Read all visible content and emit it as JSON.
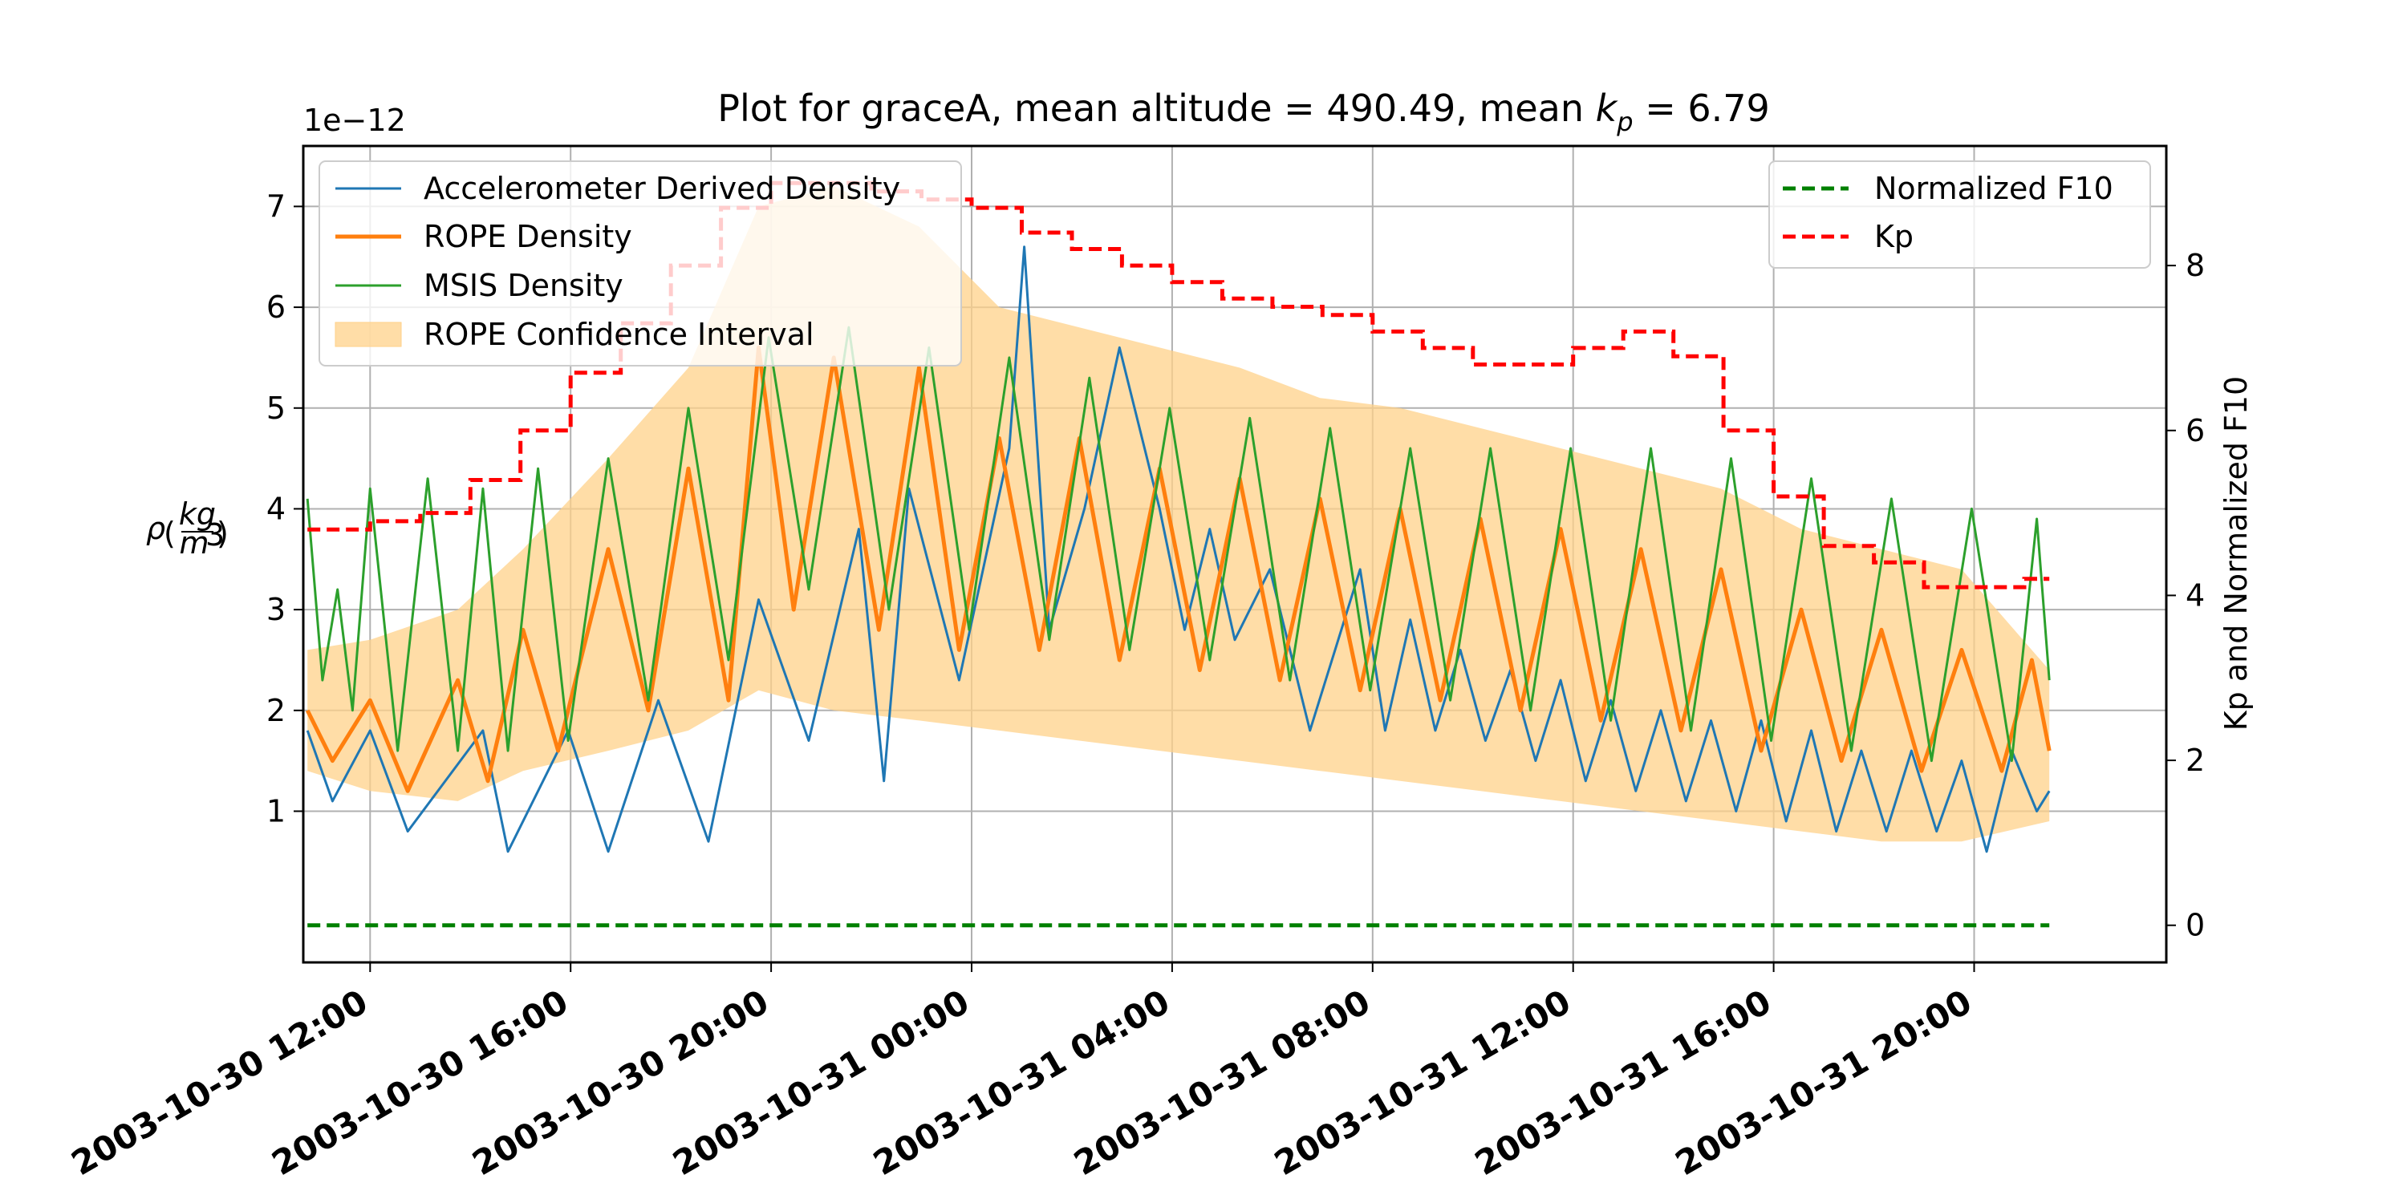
{
  "colors": {
    "accelerometer": "#1f77b4",
    "rope": "#ff7f0e",
    "msis": "#2ca02c",
    "confidence": "#ffd18a",
    "normalized_f10": "#008000",
    "kp": "#ff0000",
    "grid": "#b0b0b0"
  },
  "chart_data": {
    "type": "line",
    "title": "Plot for graceA, mean altitude = 490.49, mean k_p = 6.79",
    "title_parts": {
      "prefix": "Plot for graceA, mean altitude = 490.49, mean ",
      "k": "k",
      "p": "p",
      "suffix": " = 6.79"
    },
    "y_multiplier_label": "1e−12",
    "ylabel_left": {
      "rho": "ρ",
      "num": "kg",
      "den": "m",
      "exp": "3"
    },
    "ylabel_right": "Kp and Normalized F10",
    "x_range": [
      "2003-10-30T10:40",
      "2003-10-31T23:50"
    ],
    "ylim_left": [
      -0.5,
      7.6
    ],
    "ylim_right": [
      -0.45,
      9.45
    ],
    "grid": true,
    "x_ticks": [
      "2003-10-30 12:00",
      "2003-10-30 16:00",
      "2003-10-30 20:00",
      "2003-10-31 00:00",
      "2003-10-31 04:00",
      "2003-10-31 08:00",
      "2003-10-31 12:00",
      "2003-10-31 16:00",
      "2003-10-31 20:00"
    ],
    "y_ticks_left": [
      "1",
      "2",
      "3",
      "4",
      "5",
      "6",
      "7"
    ],
    "y_ticks_right": [
      "0",
      "2",
      "4",
      "6",
      "8"
    ],
    "legend_left": {
      "placement": "upper-left",
      "entries": [
        "Accelerometer Derived Density",
        "ROPE Density",
        "MSIS Density",
        "ROPE Confidence Interval"
      ]
    },
    "legend_right": {
      "placement": "upper-right",
      "entries": [
        "Normalized F10",
        "Kp"
      ]
    },
    "series_time": {
      "start": "2003-10-30T10:45",
      "end": "2003-10-31T21:30"
    },
    "series": [
      {
        "name": "Accelerometer Derived Density",
        "axis": "left",
        "style": "solid",
        "points": [
          [
            0,
            1.8
          ],
          [
            0.5,
            1.1
          ],
          [
            1.25,
            1.8
          ],
          [
            2,
            0.8
          ],
          [
            3.5,
            1.8
          ],
          [
            4,
            0.6
          ],
          [
            5.2,
            1.8
          ],
          [
            6,
            0.6
          ],
          [
            7,
            2.1
          ],
          [
            8,
            0.7
          ],
          [
            9,
            3.1
          ],
          [
            10,
            1.7
          ],
          [
            11,
            3.8
          ],
          [
            11.5,
            1.3
          ],
          [
            12,
            4.2
          ],
          [
            13,
            2.3
          ],
          [
            14,
            4.6
          ],
          [
            14.3,
            6.6
          ],
          [
            14.8,
            2.8
          ],
          [
            15.5,
            4.0
          ],
          [
            16.2,
            5.6
          ],
          [
            17,
            4.0
          ],
          [
            17.5,
            2.8
          ],
          [
            18,
            3.8
          ],
          [
            18.5,
            2.7
          ],
          [
            19.2,
            3.4
          ],
          [
            20,
            1.8
          ],
          [
            20.5,
            2.6
          ],
          [
            21,
            3.4
          ],
          [
            21.5,
            1.8
          ],
          [
            22,
            2.9
          ],
          [
            22.5,
            1.8
          ],
          [
            23,
            2.6
          ],
          [
            23.5,
            1.7
          ],
          [
            24,
            2.4
          ],
          [
            24.5,
            1.5
          ],
          [
            25,
            2.3
          ],
          [
            25.5,
            1.3
          ],
          [
            26,
            2.1
          ],
          [
            26.5,
            1.2
          ],
          [
            27,
            2.0
          ],
          [
            27.5,
            1.1
          ],
          [
            28,
            1.9
          ],
          [
            28.5,
            1.0
          ],
          [
            29,
            1.9
          ],
          [
            29.5,
            0.9
          ],
          [
            30,
            1.8
          ],
          [
            30.5,
            0.8
          ],
          [
            31,
            1.6
          ],
          [
            31.5,
            0.8
          ],
          [
            32,
            1.6
          ],
          [
            32.5,
            0.8
          ],
          [
            33,
            1.5
          ],
          [
            33.5,
            0.6
          ],
          [
            34,
            1.6
          ],
          [
            34.5,
            1.0
          ],
          [
            34.75,
            1.2
          ]
        ]
      },
      {
        "name": "ROPE Density",
        "axis": "left",
        "style": "solid",
        "points": [
          [
            0,
            2.0
          ],
          [
            0.5,
            1.5
          ],
          [
            1.25,
            2.1
          ],
          [
            2,
            1.2
          ],
          [
            3,
            2.3
          ],
          [
            3.6,
            1.3
          ],
          [
            4.3,
            2.8
          ],
          [
            5,
            1.6
          ],
          [
            6,
            3.6
          ],
          [
            6.8,
            2.0
          ],
          [
            7.6,
            4.4
          ],
          [
            8.4,
            2.1
          ],
          [
            9,
            5.6
          ],
          [
            9.7,
            3.0
          ],
          [
            10.5,
            5.5
          ],
          [
            11.4,
            2.8
          ],
          [
            12.2,
            5.4
          ],
          [
            13,
            2.6
          ],
          [
            13.8,
            4.7
          ],
          [
            14.6,
            2.6
          ],
          [
            15.4,
            4.7
          ],
          [
            16.2,
            2.5
          ],
          [
            17,
            4.4
          ],
          [
            17.8,
            2.4
          ],
          [
            18.6,
            4.3
          ],
          [
            19.4,
            2.3
          ],
          [
            20.2,
            4.1
          ],
          [
            21,
            2.2
          ],
          [
            21.8,
            4.0
          ],
          [
            22.6,
            2.1
          ],
          [
            23.4,
            3.9
          ],
          [
            24.2,
            2.0
          ],
          [
            25,
            3.8
          ],
          [
            25.8,
            1.9
          ],
          [
            26.6,
            3.6
          ],
          [
            27.4,
            1.8
          ],
          [
            28.2,
            3.4
          ],
          [
            29,
            1.6
          ],
          [
            29.8,
            3.0
          ],
          [
            30.6,
            1.5
          ],
          [
            31.4,
            2.8
          ],
          [
            32.2,
            1.4
          ],
          [
            33,
            2.6
          ],
          [
            33.8,
            1.4
          ],
          [
            34.4,
            2.5
          ],
          [
            34.75,
            1.6
          ]
        ]
      },
      {
        "name": "MSIS Density",
        "axis": "left",
        "style": "solid",
        "points": [
          [
            0,
            4.1
          ],
          [
            0.3,
            2.3
          ],
          [
            0.6,
            3.2
          ],
          [
            0.9,
            2.0
          ],
          [
            1.25,
            4.2
          ],
          [
            1.8,
            1.6
          ],
          [
            2.4,
            4.3
          ],
          [
            3,
            1.6
          ],
          [
            3.5,
            4.2
          ],
          [
            4,
            1.6
          ],
          [
            4.6,
            4.4
          ],
          [
            5.2,
            1.7
          ],
          [
            6,
            4.5
          ],
          [
            6.8,
            2.1
          ],
          [
            7.6,
            5.0
          ],
          [
            8.4,
            2.5
          ],
          [
            9.2,
            5.7
          ],
          [
            10,
            3.2
          ],
          [
            10.8,
            5.8
          ],
          [
            11.6,
            3.0
          ],
          [
            12.4,
            5.6
          ],
          [
            13.2,
            2.8
          ],
          [
            14,
            5.5
          ],
          [
            14.8,
            2.7
          ],
          [
            15.6,
            5.3
          ],
          [
            16.4,
            2.6
          ],
          [
            17.2,
            5.0
          ],
          [
            18,
            2.5
          ],
          [
            18.8,
            4.9
          ],
          [
            19.6,
            2.3
          ],
          [
            20.4,
            4.8
          ],
          [
            21.2,
            2.2
          ],
          [
            22,
            4.6
          ],
          [
            22.8,
            2.1
          ],
          [
            23.6,
            4.6
          ],
          [
            24.4,
            2.0
          ],
          [
            25.2,
            4.6
          ],
          [
            26,
            1.9
          ],
          [
            26.8,
            4.6
          ],
          [
            27.6,
            1.8
          ],
          [
            28.4,
            4.5
          ],
          [
            29.2,
            1.7
          ],
          [
            30,
            4.3
          ],
          [
            30.8,
            1.6
          ],
          [
            31.6,
            4.1
          ],
          [
            32.4,
            1.5
          ],
          [
            33.2,
            4.0
          ],
          [
            34,
            1.5
          ],
          [
            34.5,
            3.9
          ],
          [
            34.75,
            2.3
          ]
        ]
      },
      {
        "name": "ROPE Confidence Interval",
        "axis": "left",
        "style": "band",
        "upper": [
          [
            0,
            2.6
          ],
          [
            1.25,
            2.7
          ],
          [
            3,
            3.0
          ],
          [
            4.3,
            3.6
          ],
          [
            6,
            4.5
          ],
          [
            7.6,
            5.4
          ],
          [
            9,
            7.0
          ],
          [
            10.5,
            7.2
          ],
          [
            12.2,
            6.8
          ],
          [
            13.8,
            6.0
          ],
          [
            15.4,
            5.8
          ],
          [
            17,
            5.6
          ],
          [
            18.6,
            5.4
          ],
          [
            20.2,
            5.1
          ],
          [
            21.8,
            5.0
          ],
          [
            23.4,
            4.8
          ],
          [
            25,
            4.6
          ],
          [
            26.6,
            4.4
          ],
          [
            28.2,
            4.2
          ],
          [
            29.8,
            3.8
          ],
          [
            31.4,
            3.6
          ],
          [
            33,
            3.4
          ],
          [
            34.75,
            2.4
          ]
        ],
        "lower": [
          [
            0,
            1.4
          ],
          [
            1.25,
            1.2
          ],
          [
            3,
            1.1
          ],
          [
            4.3,
            1.4
          ],
          [
            6,
            1.6
          ],
          [
            7.6,
            1.8
          ],
          [
            9,
            2.2
          ],
          [
            10.5,
            2.0
          ],
          [
            12.2,
            1.9
          ],
          [
            13.8,
            1.8
          ],
          [
            15.4,
            1.7
          ],
          [
            17,
            1.6
          ],
          [
            18.6,
            1.5
          ],
          [
            20.2,
            1.4
          ],
          [
            21.8,
            1.3
          ],
          [
            23.4,
            1.2
          ],
          [
            25,
            1.1
          ],
          [
            26.6,
            1.0
          ],
          [
            28.2,
            0.9
          ],
          [
            29.8,
            0.8
          ],
          [
            31.4,
            0.7
          ],
          [
            33,
            0.7
          ],
          [
            34.75,
            0.9
          ]
        ]
      },
      {
        "name": "Normalized F10",
        "axis": "right",
        "style": "dashed",
        "points": [
          [
            0,
            0
          ],
          [
            34.75,
            0
          ]
        ]
      },
      {
        "name": "Kp",
        "axis": "right",
        "style": "step",
        "points": [
          [
            0,
            4.8
          ],
          [
            1.25,
            4.9
          ],
          [
            2.25,
            5.0
          ],
          [
            3.25,
            5.4
          ],
          [
            4.25,
            6.0
          ],
          [
            5.25,
            6.7
          ],
          [
            6.25,
            7.3
          ],
          [
            7.25,
            8.0
          ],
          [
            8.25,
            8.7
          ],
          [
            9.25,
            9.0
          ],
          [
            10.25,
            9.0
          ],
          [
            11.25,
            8.9
          ],
          [
            12.25,
            8.8
          ],
          [
            13.25,
            8.7
          ],
          [
            14.25,
            8.4
          ],
          [
            15.25,
            8.2
          ],
          [
            16.25,
            8.0
          ],
          [
            17.25,
            7.8
          ],
          [
            18.25,
            7.6
          ],
          [
            19.25,
            7.5
          ],
          [
            20.25,
            7.4
          ],
          [
            21.25,
            7.2
          ],
          [
            22.25,
            7.0
          ],
          [
            23.25,
            6.8
          ],
          [
            24.25,
            6.8
          ],
          [
            25.25,
            7.0
          ],
          [
            26.25,
            7.2
          ],
          [
            27.25,
            6.9
          ],
          [
            28.25,
            6.0
          ],
          [
            29.25,
            5.2
          ],
          [
            30.25,
            4.6
          ],
          [
            31.25,
            4.4
          ],
          [
            32.25,
            4.1
          ],
          [
            33.25,
            4.1
          ],
          [
            34.25,
            4.2
          ],
          [
            34.75,
            4.2
          ]
        ]
      }
    ]
  }
}
